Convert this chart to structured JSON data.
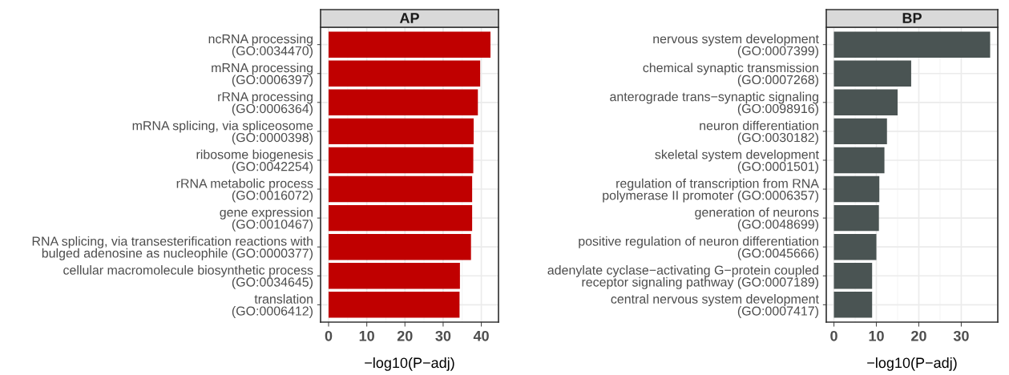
{
  "chart_data": [
    {
      "type": "bar",
      "orientation": "horizontal",
      "title": "AP",
      "xlabel": "−log10(P−adj)",
      "categories": [
        "ncRNA processing\n(GO:0034470)",
        "mRNA processing\n(GO:0006397)",
        "rRNA processing\n(GO:0006364)",
        "mRNA splicing, via spliceosome\n(GO:0000398)",
        "ribosome biogenesis\n(GO:0042254)",
        "rRNA metabolic process\n(GO:0016072)",
        "gene expression\n(GO:0010467)",
        "RNA splicing, via transesterification reactions with\nbulged adenosine as nucleophile (GO:0000377)",
        "cellular macromolecule biosynthetic process\n(GO:0034645)",
        "translation\n(GO:0006412)"
      ],
      "values": [
        42.4,
        39.7,
        39.1,
        38.0,
        37.9,
        37.6,
        37.6,
        37.3,
        34.4,
        34.3
      ],
      "color": "#c00000",
      "xlim": [
        -2.1,
        44.5
      ],
      "xticks": [
        0,
        10,
        20,
        30,
        40
      ],
      "grid": true
    },
    {
      "type": "bar",
      "orientation": "horizontal",
      "title": "BP",
      "xlabel": "−log10(P−adj)",
      "categories": [
        "nervous system development\n(GO:0007399)",
        "chemical synaptic transmission\n(GO:0007268)",
        "anterograde trans−synaptic signaling\n(GO:0098916)",
        "neuron differentiation\n(GO:0030182)",
        "skeletal system development\n(GO:0001501)",
        "regulation of transcription from RNA\npolymerase II promoter (GO:0006357)",
        "generation of neurons\n(GO:0048699)",
        "positive regulation of neuron differentiation\n(GO:0045666)",
        "adenylate cyclase−activating G−protein coupled\nreceptor signaling pathway (GO:0007189)",
        "central nervous system development\n(GO:0007417)"
      ],
      "values": [
        36.8,
        18.2,
        15.0,
        12.5,
        11.9,
        10.7,
        10.6,
        10.0,
        9.0,
        9.0
      ],
      "color": "#4a5453",
      "xlim": [
        -1.8,
        38.6
      ],
      "xticks": [
        0,
        10,
        20,
        30
      ],
      "grid": true
    }
  ]
}
